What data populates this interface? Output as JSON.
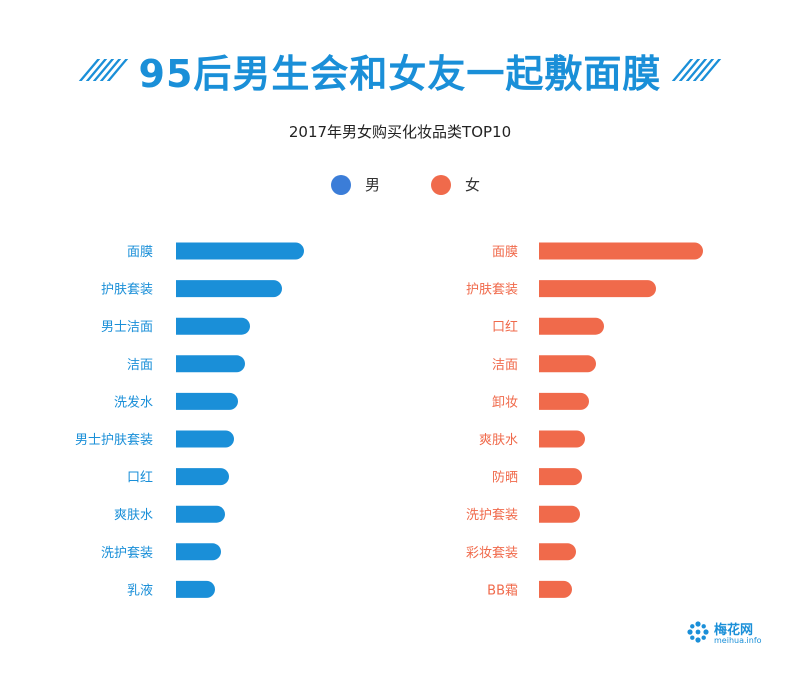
{
  "header": {
    "title": "95后男生会和女友一起敷面膜"
  },
  "chart_data": [
    {
      "type": "bar",
      "orientation": "horizontal",
      "title": "2017年男女购买化妆品类TOP10",
      "legend_label": "男",
      "color": "#1a8fd8",
      "categories": [
        "面膜",
        "护肤套装",
        "男士洁面",
        "洁面",
        "洗发水",
        "男士护肤套装",
        "口红",
        "爽肤水",
        "洗护套装",
        "乳液"
      ],
      "values": [
        128,
        106,
        74,
        69,
        62,
        58,
        53,
        49,
        45,
        39
      ]
    },
    {
      "type": "bar",
      "orientation": "horizontal",
      "title": "2017年男女购买化妆品类TOP10",
      "legend_label": "女",
      "color": "#f06a4b",
      "categories": [
        "面膜",
        "护肤套装",
        "口红",
        "洁面",
        "卸妆",
        "爽肤水",
        "防晒",
        "洗护套装",
        "彩妆套装",
        "BB霜"
      ],
      "values": [
        164,
        117,
        65,
        57,
        50,
        46,
        43,
        41,
        37,
        33
      ]
    }
  ],
  "legend": [
    {
      "label": "男",
      "color": "#3b7dd8"
    },
    {
      "label": "女",
      "color": "#f06a4b"
    }
  ],
  "logo": {
    "name": "梅花网",
    "sub": "meihua.info"
  }
}
